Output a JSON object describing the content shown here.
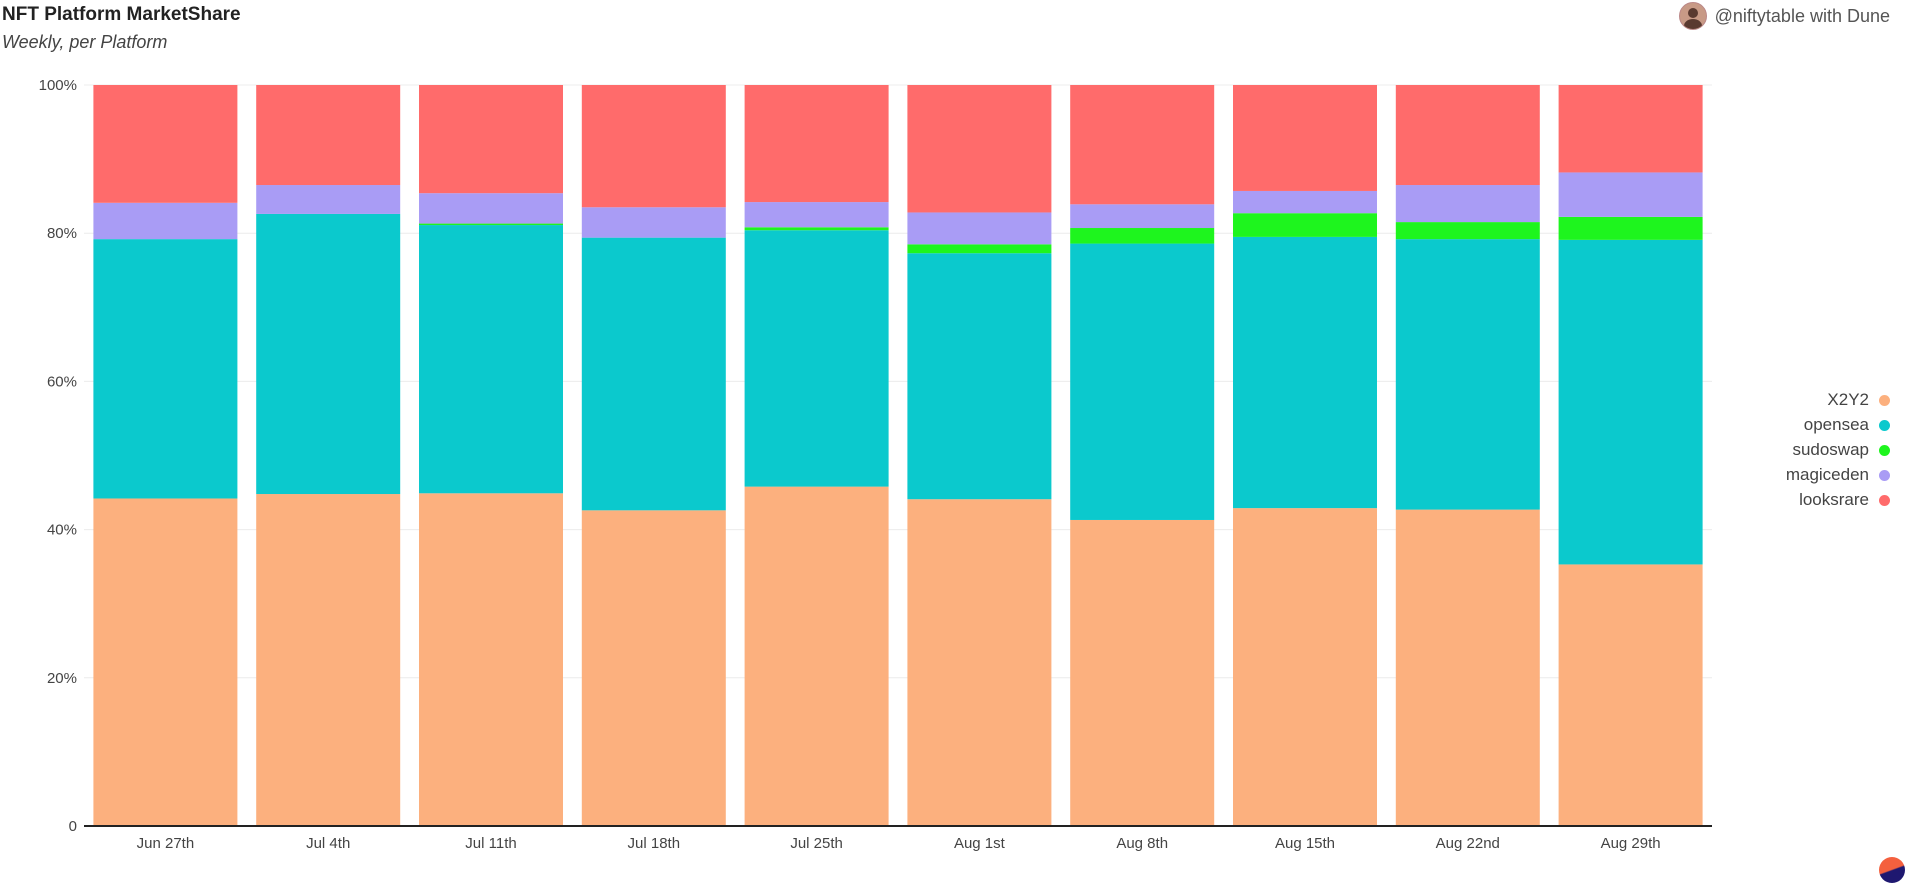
{
  "header": {
    "title": "NFT Platform MarketShare",
    "subtitle": "Weekly, per Platform",
    "credit": "@niftytable with Dune"
  },
  "colors": {
    "X2Y2": "#fcb07e",
    "opensea": "#0bc9cd",
    "sudoswap": "#1ef51e",
    "magiceden": "#a99cf5",
    "looksrare": "#ff6b6b"
  },
  "legend": {
    "items": [
      {
        "label": "X2Y2",
        "color": "#fcb07e"
      },
      {
        "label": "opensea",
        "color": "#0bc9cd"
      },
      {
        "label": "sudoswap",
        "color": "#1ef51e"
      },
      {
        "label": "magiceden",
        "color": "#a99cf5"
      },
      {
        "label": "looksrare",
        "color": "#ff6b6b"
      }
    ]
  },
  "chart_data": {
    "type": "bar",
    "stacked": true,
    "normalized": true,
    "categories": [
      "Jun 27th",
      "Jul 4th",
      "Jul 11th",
      "Jul 18th",
      "Jul 25th",
      "Aug 1st",
      "Aug 8th",
      "Aug 15th",
      "Aug 22nd",
      "Aug 29th"
    ],
    "series": [
      {
        "name": "X2Y2",
        "values": [
          44.2,
          44.8,
          44.9,
          42.6,
          45.8,
          44.1,
          41.3,
          42.9,
          42.7,
          35.3
        ]
      },
      {
        "name": "opensea",
        "values": [
          35.0,
          37.8,
          36.2,
          36.8,
          34.6,
          33.2,
          37.3,
          36.6,
          36.5,
          43.8
        ]
      },
      {
        "name": "sudoswap",
        "values": [
          0.0,
          0.0,
          0.2,
          0.0,
          0.4,
          1.2,
          2.1,
          3.2,
          2.3,
          3.1
        ]
      },
      {
        "name": "magiceden",
        "values": [
          4.9,
          3.9,
          4.1,
          4.1,
          3.4,
          4.3,
          3.2,
          3.0,
          5.0,
          6.0
        ]
      },
      {
        "name": "looksrare",
        "values": [
          15.9,
          13.5,
          14.6,
          16.5,
          15.8,
          17.2,
          16.1,
          14.3,
          13.5,
          11.8
        ]
      }
    ],
    "yticks": [
      "0",
      "20%",
      "40%",
      "60%",
      "80%",
      "100%"
    ],
    "ylim": [
      0,
      100
    ],
    "grid": true,
    "legend_position": "right"
  }
}
